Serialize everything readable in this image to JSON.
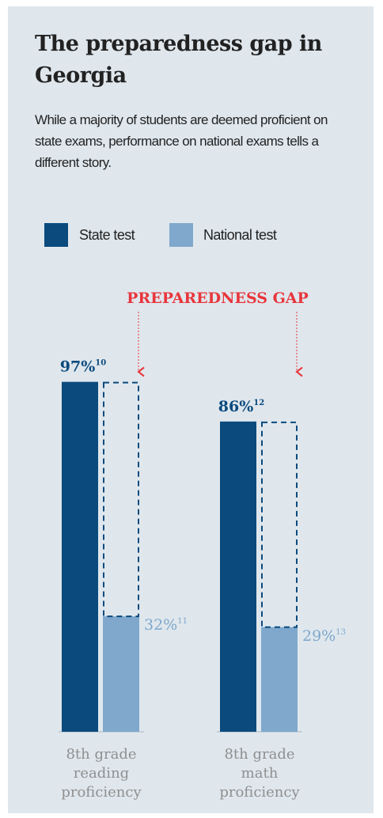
{
  "chart_data": {
    "type": "bar",
    "title": "The preparedness gap in Georgia",
    "subtitle": "While a majority of students are deemed proficient on state exams, performance on national exams tells a different story.",
    "annotation": "PREPAREDNESS GAP",
    "categories": [
      [
        "8th grade",
        "reading",
        "proficiency"
      ],
      [
        "8th grade",
        "math",
        "proficiency"
      ]
    ],
    "series": [
      {
        "name": "State test",
        "color": "#0b4a7d",
        "values": [
          97,
          86
        ],
        "value_labels": [
          "97%",
          "86%"
        ],
        "footnotes": [
          "10",
          "12"
        ]
      },
      {
        "name": "National test",
        "color": "#7fa8cc",
        "values": [
          32,
          29
        ],
        "value_labels": [
          "32%",
          "29%"
        ],
        "footnotes": [
          "11",
          "13"
        ]
      }
    ],
    "ylim": [
      0,
      100
    ]
  }
}
